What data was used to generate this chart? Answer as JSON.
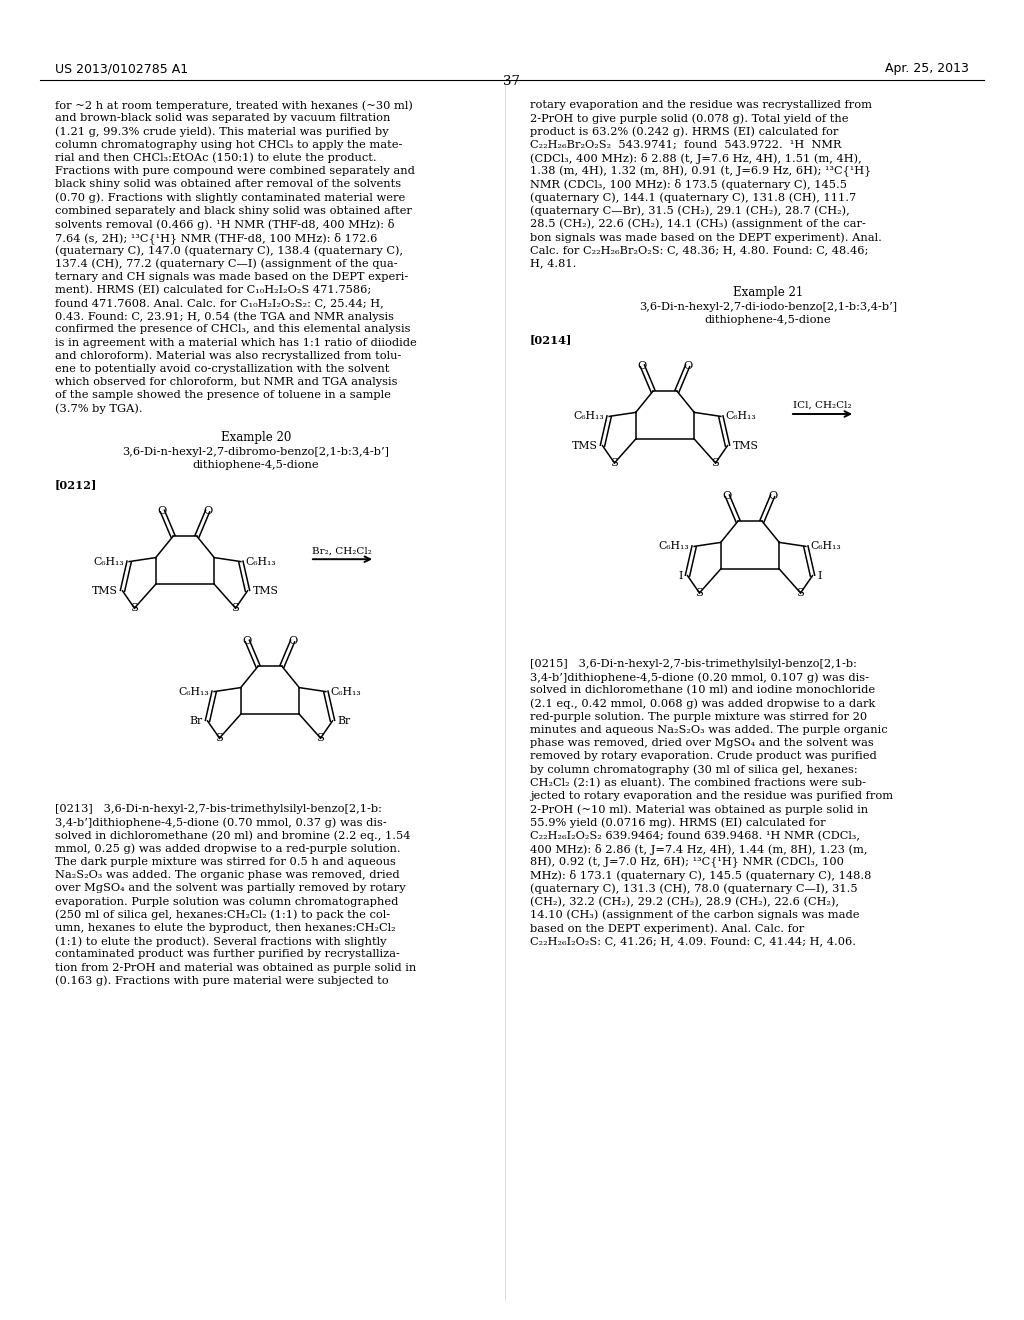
{
  "page_header_left": "US 2013/0102785 A1",
  "page_header_right": "Apr. 25, 2013",
  "page_number": "37",
  "background_color": "#ffffff",
  "left_col_lines": [
    "for ~2 h at room temperature, treated with hexanes (~30 ml)",
    "and brown-black solid was separated by vacuum filtration",
    "(1.21 g, 99.3% crude yield). This material was purified by",
    "column chromatography using hot CHCl₃ to apply the mate-",
    "rial and then CHCl₃:EtOAc (150:1) to elute the product.",
    "Fractions with pure compound were combined separately and",
    "black shiny solid was obtained after removal of the solvents",
    "(0.70 g). Fractions with slightly contaminated material were",
    "combined separately and black shiny solid was obtained after",
    "solvents removal (0.466 g). ¹H NMR (THF-d8, 400 MHz): δ",
    "7.64 (s, 2H); ¹³C{¹H} NMR (THF-d8, 100 MHz): δ 172.6",
    "(quaternary C), 147.0 (quaternary C), 138.4 (quaternary C),",
    "137.4 (CH), 77.2 (quaternary C—I) (assignment of the qua-",
    "ternary and CH signals was made based on the DEPT experi-",
    "ment). HRMS (EI) calculated for C₁₀H₂I₂O₂S 471.7586;",
    "found 471.7608. Anal. Calc. for C₁₀H₂I₂O₂S₂: C, 25.44; H,",
    "0.43. Found: C, 23.91; H, 0.54 (the TGA and NMR analysis",
    "confirmed the presence of CHCl₃, and this elemental analysis",
    "is in agreement with a material which has 1:1 ratio of diiodide",
    "and chloroform). Material was also recrystallized from tolu-",
    "ene to potentially avoid co-crystallization with the solvent",
    "which observed for chloroform, but NMR and TGA analysis",
    "of the sample showed the presence of toluene in a sample",
    "(3.7% by TGA)."
  ],
  "right_col_lines": [
    "rotary evaporation and the residue was recrystallized from",
    "2-PrOH to give purple solid (0.078 g). Total yield of the",
    "product is 63.2% (0.242 g). HRMS (EI) calculated for",
    "C₂₂H₂₆Br₂O₂S₂  543.9741;  found  543.9722.  ¹H  NMR",
    "(CDCl₃, 400 MHz): δ 2.88 (t, J=7.6 Hz, 4H), 1.51 (m, 4H),",
    "1.38 (m, 4H), 1.32 (m, 8H), 0.91 (t, J=6.9 Hz, 6H); ¹³C{¹H}",
    "NMR (CDCl₃, 100 MHz): δ 173.5 (quaternary C), 145.5",
    "(quaternary C), 144.1 (quaternary C), 131.8 (CH), 111.7",
    "(quaternary C—Br), 31.5 (CH₂), 29.1 (CH₂), 28.7 (CH₂),",
    "28.5 (CH₂), 22.6 (CH₂), 14.1 (CH₃) (assignment of the car-",
    "bon signals was made based on the DEPT experiment). Anal.",
    "Calc. for C₂₂H₂₆Br₂O₂S: C, 48.36; H, 4.80. Found: C, 48.46;",
    "H, 4.81."
  ],
  "ex20_title": "Example 20",
  "ex20_name1": "3,6-Di-n-hexyl-2,7-dibromo-benzo[2,1-b:3,4-b’]",
  "ex20_name2": "dithiophene-4,5-dione",
  "ex20_para": "[0212]",
  "ex20_reagent": "Br₂, CH₂Cl₂",
  "ex21_title": "Example 21",
  "ex21_name1": "3,6-Di-n-hexyl-2,7-di-iodo-benzo[2,1-b:3,4-b’]",
  "ex21_name2": "dithiophene-4,5-dione",
  "ex21_para": "[0214]",
  "ex21_reagent": "ICl, CH₂Cl₂",
  "para213_lines": [
    "[0213]   3,6-Di-n-hexyl-2,7-bis-trimethylsilyl-benzo[2,1-b:",
    "3,4-b’]dithiophene-4,5-dione (0.70 mmol, 0.37 g) was dis-",
    "solved in dichloromethane (20 ml) and bromine (2.2 eq., 1.54",
    "mmol, 0.25 g) was added dropwise to a red-purple solution.",
    "The dark purple mixture was stirred for 0.5 h and aqueous",
    "Na₂S₂O₃ was added. The organic phase was removed, dried",
    "over MgSO₄ and the solvent was partially removed by rotary",
    "evaporation. Purple solution was column chromatographed",
    "(250 ml of silica gel, hexanes:CH₂Cl₂ (1:1) to pack the col-",
    "umn, hexanes to elute the byproduct, then hexanes:CH₂Cl₂",
    "(1:1) to elute the product). Several fractions with slightly",
    "contaminated product was further purified by recrystalliza-",
    "tion from 2-PrOH and material was obtained as purple solid in",
    "(0.163 g). Fractions with pure material were subjected to"
  ],
  "para215_lines": [
    "[0215]   3,6-Di-n-hexyl-2,7-bis-trimethylsilyl-benzo[2,1-b:",
    "3,4-b’]dithiophene-4,5-dione (0.20 mmol, 0.107 g) was dis-",
    "solved in dichloromethane (10 ml) and iodine monochloride",
    "(2.1 eq., 0.42 mmol, 0.068 g) was added dropwise to a dark",
    "red-purple solution. The purple mixture was stirred for 20",
    "minutes and aqueous Na₂S₂O₃ was added. The purple organic",
    "phase was removed, dried over MgSO₄ and the solvent was",
    "removed by rotary evaporation. Crude product was purified",
    "by column chromatography (30 ml of silica gel, hexanes:",
    "CH₂Cl₂ (2:1) as eluant). The combined fractions were sub-",
    "jected to rotary evaporation and the residue was purified from",
    "2-PrOH (~10 ml). Material was obtained as purple solid in",
    "55.9% yield (0.0716 mg). HRMS (EI) calculated for",
    "C₂₂H₂₆I₂O₂S₂ 639.9464; found 639.9468. ¹H NMR (CDCl₃,",
    "400 MHz): δ 2.86 (t, J=7.4 Hz, 4H), 1.44 (m, 8H), 1.23 (m,",
    "8H), 0.92 (t, J=7.0 Hz, 6H); ¹³C{¹H} NMR (CDCl₃, 100",
    "MHz): δ 173.1 (quaternary C), 145.5 (quaternary C), 148.8",
    "(quaternary C), 131.3 (CH), 78.0 (quaternary C—I), 31.5",
    "(CH₂), 32.2 (CH₂), 29.2 (CH₂), 28.9 (CH₂), 22.6 (CH₂),",
    "14.10 (CH₃) (assignment of the carbon signals was made",
    "based on the DEPT experiment). Anal. Calc. for",
    "C₂₂H₂₆I₂O₂S: C, 41.26; H, 4.09. Found: C, 41.44; H, 4.06."
  ]
}
